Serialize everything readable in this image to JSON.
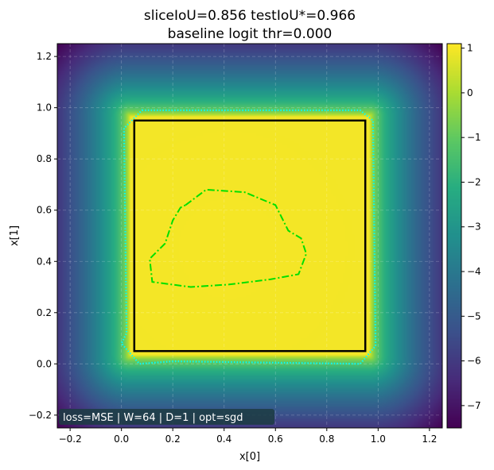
{
  "chart_data": {
    "type": "heatmap",
    "title_lines": [
      "sliceIoU=0.856  testIoU*=0.966",
      "baseline logit thr=0.000"
    ],
    "xlabel": "x[0]",
    "ylabel": "x[1]",
    "xlim": [
      -0.25,
      1.25
    ],
    "ylim": [
      -0.25,
      1.25
    ],
    "xticks": [
      -0.2,
      0.0,
      0.2,
      0.4,
      0.6,
      0.8,
      1.0,
      1.2
    ],
    "xtick_labels": [
      "−0.2",
      "0.0",
      "0.2",
      "0.4",
      "0.6",
      "0.8",
      "1.0",
      "1.2"
    ],
    "yticks": [
      -0.2,
      0.0,
      0.2,
      0.4,
      0.6,
      0.8,
      1.0,
      1.2
    ],
    "ytick_labels": [
      "−0.2",
      "0.0",
      "0.2",
      "0.4",
      "0.6",
      "0.8",
      "1.0",
      "1.2"
    ],
    "grid": true,
    "colormap": "viridis",
    "colorbar": {
      "range": [
        -7.5,
        1.1
      ],
      "ticks": [
        1,
        0,
        -1,
        -2,
        -3,
        -4,
        -5,
        -6,
        -7
      ],
      "tick_labels": [
        "1",
        "0",
        "−1",
        "−2",
        "−3",
        "−4",
        "−5",
        "−6",
        "−7"
      ]
    },
    "field": {
      "plateau": 1.0,
      "min_corner": -7.5,
      "inner_box": [
        0.03,
        0.97
      ]
    },
    "true_square": {
      "x": [
        0.05,
        0.95
      ],
      "y": [
        0.05,
        0.95
      ],
      "color": "#000000"
    },
    "decision_contour": {
      "color": "#00ffff",
      "points": [
        [
          0.08,
          0.99
        ],
        [
          0.93,
          0.99
        ],
        [
          0.98,
          0.95
        ],
        [
          0.99,
          0.07
        ],
        [
          0.93,
          0.0
        ],
        [
          0.2,
          0.01
        ],
        [
          0.07,
          0.0
        ],
        [
          0.0,
          0.08
        ],
        [
          0.02,
          0.12
        ],
        [
          0.01,
          0.92
        ]
      ]
    },
    "slice_contour": {
      "color": "#00e000",
      "points": [
        [
          0.25,
          0.62
        ],
        [
          0.33,
          0.68
        ],
        [
          0.48,
          0.67
        ],
        [
          0.6,
          0.62
        ],
        [
          0.65,
          0.52
        ],
        [
          0.7,
          0.49
        ],
        [
          0.72,
          0.43
        ],
        [
          0.69,
          0.35
        ],
        [
          0.58,
          0.33
        ],
        [
          0.42,
          0.31
        ],
        [
          0.27,
          0.3
        ],
        [
          0.12,
          0.32
        ],
        [
          0.11,
          0.41
        ],
        [
          0.17,
          0.47
        ],
        [
          0.2,
          0.56
        ],
        [
          0.23,
          0.61
        ]
      ]
    },
    "annotation": "loss=MSE | W=64 | D=1 | opt=sgd"
  }
}
